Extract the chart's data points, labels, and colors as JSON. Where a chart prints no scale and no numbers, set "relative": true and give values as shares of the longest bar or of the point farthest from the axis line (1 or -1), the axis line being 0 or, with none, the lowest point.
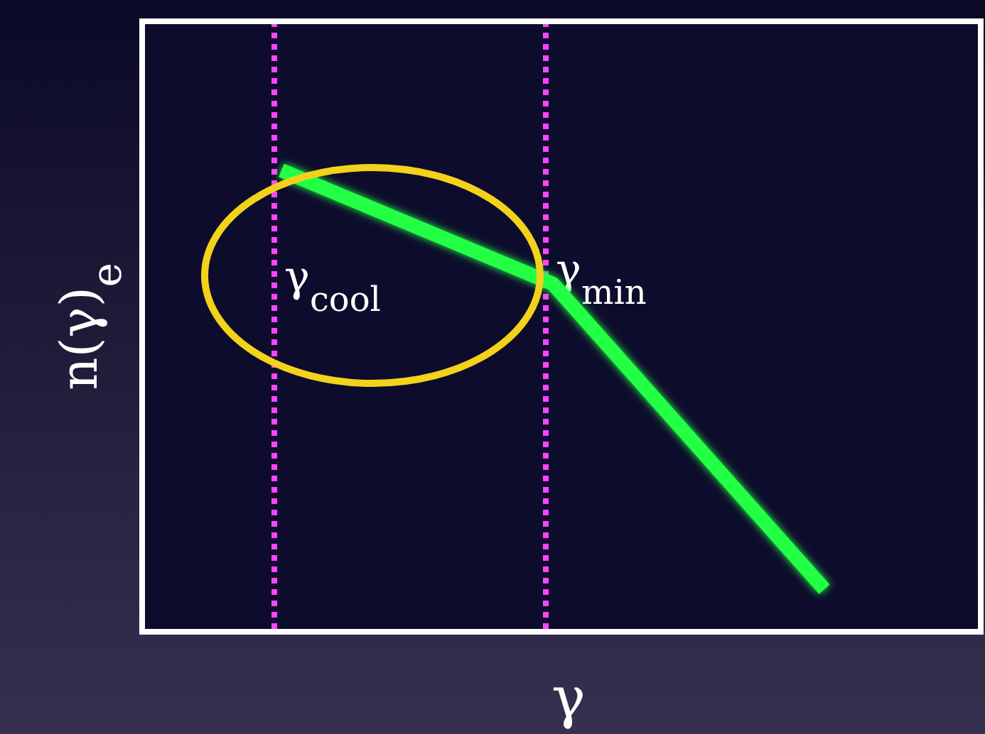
{
  "chart_data": {
    "type": "line",
    "relative": true,
    "xlabel": "γ",
    "ylabel": "n(γ)$_{e}$",
    "categories": [
      null,
      null,
      null
    ],
    "series": [
      {
        "color": "#22ff44",
        "values": [
          1,
          0.754,
          0.092
        ]
      }
    ],
    "annotations": [
      "γ$_{cool}$",
      "γ$_{min}$"
    ],
    "marker": "none",
    "line_style": "solid"
  }
}
